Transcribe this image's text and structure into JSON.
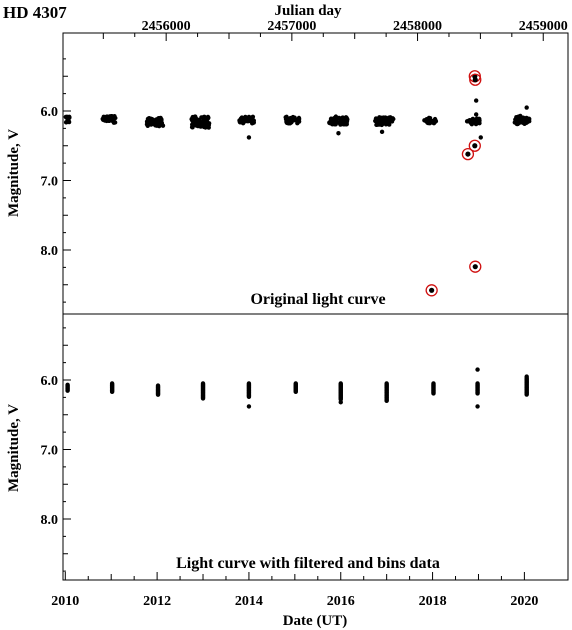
{
  "figure": {
    "star_name": "HD 4307",
    "top_axis_label": "Julian day",
    "bottom_axis_label": "Date (UT)",
    "y_axis_label": "Magnitude, V"
  },
  "chart_data": [
    {
      "type": "scatter",
      "panel": "top",
      "annotation": "Original light curve",
      "xlabel": "Date (UT)",
      "x2label": "Julian day",
      "ylabel": "Magnitude, V",
      "xlim": [
        2009.95,
        2020.95
      ],
      "ylim": [
        8.9,
        5.1
      ],
      "y_inverted": true,
      "x2_ticks": [
        {
          "jd": 2456000,
          "label": "2456000"
        },
        {
          "jd": 2457000,
          "label": "2457000"
        },
        {
          "jd": 2458000,
          "label": "2458000"
        },
        {
          "jd": 2459000,
          "label": "2459000"
        }
      ],
      "yticks": [
        {
          "value": 6.0,
          "label": "6.0"
        },
        {
          "value": 7.0,
          "label": "7.0"
        },
        {
          "value": 8.0,
          "label": "8.0"
        }
      ],
      "seasons": [
        {
          "center": 2010.05,
          "width": 0.08,
          "mid": 6.13,
          "spread": 0.05,
          "n": 10
        },
        {
          "center": 2010.95,
          "width": 0.28,
          "mid": 6.12,
          "spread": 0.05,
          "n": 45
        },
        {
          "center": 2011.95,
          "width": 0.36,
          "mid": 6.16,
          "spread": 0.06,
          "n": 55
        },
        {
          "center": 2012.95,
          "width": 0.4,
          "mid": 6.16,
          "spread": 0.08,
          "n": 60
        },
        {
          "center": 2013.95,
          "width": 0.32,
          "mid": 6.13,
          "spread": 0.05,
          "n": 45
        },
        {
          "center": 2014.95,
          "width": 0.3,
          "mid": 6.13,
          "spread": 0.05,
          "n": 45
        },
        {
          "center": 2015.95,
          "width": 0.4,
          "mid": 6.14,
          "spread": 0.06,
          "n": 55
        },
        {
          "center": 2016.95,
          "width": 0.4,
          "mid": 6.15,
          "spread": 0.06,
          "n": 55
        },
        {
          "center": 2017.95,
          "width": 0.26,
          "mid": 6.14,
          "spread": 0.04,
          "n": 30
        },
        {
          "center": 2018.9,
          "width": 0.3,
          "mid": 6.15,
          "spread": 0.04,
          "n": 25
        },
        {
          "center": 2019.95,
          "width": 0.32,
          "mid": 6.13,
          "spread": 0.06,
          "n": 40
        }
      ],
      "extra_points": [
        {
          "x": 2014.0,
          "y": 6.38
        },
        {
          "x": 2015.95,
          "y": 6.32
        },
        {
          "x": 2016.9,
          "y": 6.3
        },
        {
          "x": 2018.95,
          "y": 5.85
        },
        {
          "x": 2018.95,
          "y": 6.05
        },
        {
          "x": 2019.05,
          "y": 6.38
        },
        {
          "x": 2020.05,
          "y": 5.95
        }
      ],
      "outliers_circled": [
        {
          "x": 2017.98,
          "y": 8.58
        },
        {
          "x": 2018.77,
          "y": 6.62
        },
        {
          "x": 2018.92,
          "y": 6.5
        },
        {
          "x": 2018.93,
          "y": 8.24
        },
        {
          "x": 2018.92,
          "y": 5.5
        },
        {
          "x": 2018.93,
          "y": 5.55
        }
      ]
    },
    {
      "type": "scatter",
      "panel": "bottom",
      "annotation": "Light curve  with filtered and bins data",
      "xlabel": "Date (UT)",
      "ylabel": "Magnitude, V",
      "xlim": [
        2009.95,
        2020.95
      ],
      "ylim": [
        8.9,
        5.1
      ],
      "y_inverted": true,
      "xticks": [
        {
          "value": 2010,
          "label": "2010"
        },
        {
          "value": 2012,
          "label": "2012"
        },
        {
          "value": 2014,
          "label": "2014"
        },
        {
          "value": 2016,
          "label": "2016"
        },
        {
          "value": 2018,
          "label": "2018"
        },
        {
          "value": 2020,
          "label": "2020"
        }
      ],
      "yticks": [
        {
          "value": 6.0,
          "label": "6.0"
        },
        {
          "value": 7.0,
          "label": "7.0"
        },
        {
          "value": 8.0,
          "label": "8.0"
        }
      ],
      "bins": [
        {
          "x": 2010.05,
          "ymin": 6.07,
          "ymax": 6.16
        },
        {
          "x": 2011.02,
          "ymin": 6.05,
          "ymax": 6.17
        },
        {
          "x": 2012.02,
          "ymin": 6.08,
          "ymax": 6.22
        },
        {
          "x": 2013.0,
          "ymin": 6.05,
          "ymax": 6.27
        },
        {
          "x": 2014.0,
          "ymin": 6.05,
          "ymax": 6.25
        },
        {
          "x": 2015.02,
          "ymin": 6.05,
          "ymax": 6.18
        },
        {
          "x": 2016.0,
          "ymin": 6.05,
          "ymax": 6.28
        },
        {
          "x": 2017.0,
          "ymin": 6.05,
          "ymax": 6.3
        },
        {
          "x": 2018.02,
          "ymin": 6.05,
          "ymax": 6.2
        },
        {
          "x": 2018.98,
          "ymin": 6.05,
          "ymax": 6.2
        },
        {
          "x": 2020.05,
          "ymin": 5.97,
          "ymax": 6.22
        }
      ],
      "extra_points": [
        {
          "x": 2014.0,
          "y": 6.38
        },
        {
          "x": 2016.0,
          "y": 6.32
        },
        {
          "x": 2017.0,
          "y": 6.3
        },
        {
          "x": 2018.98,
          "y": 5.85
        },
        {
          "x": 2018.98,
          "y": 6.38
        },
        {
          "x": 2020.05,
          "y": 5.95
        }
      ]
    }
  ]
}
